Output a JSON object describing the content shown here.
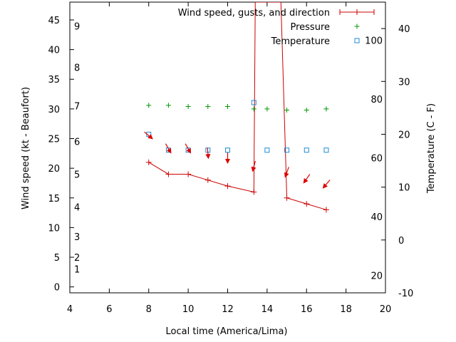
{
  "chart_data": {
    "type": "line",
    "xlabel": "Local time (America/Lima)",
    "ylabel": "Wind speed (kt - Beaufort)",
    "y2label": "Temperature (C - F)",
    "xlim": [
      4,
      20
    ],
    "ylim": [
      -1,
      48
    ],
    "y2lim": [
      -10,
      45
    ],
    "grid": false,
    "legend_position": "top-right",
    "x_ticks": [
      "4",
      "6",
      "8",
      "10",
      "12",
      "14",
      "16",
      "18",
      "20"
    ],
    "y_ticks": [
      "0",
      "5",
      "10",
      "15",
      "20",
      "25",
      "30",
      "35",
      "40",
      "45"
    ],
    "y2_ticks_celsius": [
      "-10",
      "0",
      "10",
      "20",
      "30",
      "40"
    ],
    "fahrenheit_labels": [
      "20",
      "40",
      "60",
      "80",
      "100"
    ],
    "beaufort_labels": [
      "1",
      "2",
      "3",
      "4",
      "5",
      "6",
      "7",
      "8",
      "9"
    ],
    "colors": {
      "wind": "#cc0000",
      "pressure": "#009900",
      "temperature": "#1e8bd6",
      "direction_arrow": "#dd0000"
    },
    "series": [
      {
        "name": "Wind speed, gusts, and direction",
        "marker": "plus-line",
        "x": [
          8,
          9,
          10,
          11,
          12,
          13.33,
          13.4,
          14.7,
          15,
          16,
          17
        ],
        "y": [
          21,
          19,
          19,
          18,
          17,
          16,
          48,
          48,
          15,
          14,
          13
        ]
      },
      {
        "name": "Pressure",
        "marker": "plus",
        "x": [
          8,
          9,
          10,
          11,
          12,
          13.33,
          14,
          15,
          16,
          17
        ],
        "y": [
          30.6,
          30.6,
          30.4,
          30.4,
          30.4,
          30.0,
          30.0,
          29.8,
          29.8,
          30.0
        ]
      },
      {
        "name": "Temperature",
        "marker": "square",
        "x": [
          8,
          9,
          10,
          11,
          12,
          13.33,
          14,
          15,
          16,
          17
        ],
        "y2": [
          20,
          17,
          17,
          17,
          17,
          26,
          17,
          17,
          17,
          17
        ]
      }
    ],
    "direction_arrows": [
      {
        "x": 8,
        "y": 25.5,
        "angle": 130
      },
      {
        "x": 9,
        "y": 23.3,
        "angle": 150
      },
      {
        "x": 10,
        "y": 23.3,
        "angle": 150
      },
      {
        "x": 11,
        "y": 22.5,
        "angle": 175
      },
      {
        "x": 12,
        "y": 21.7,
        "angle": 180
      },
      {
        "x": 13.33,
        "y": 20.3,
        "angle": 195
      },
      {
        "x": 15,
        "y": 19.3,
        "angle": 200
      },
      {
        "x": 16,
        "y": 18.2,
        "angle": 215
      },
      {
        "x": 17,
        "y": 17.3,
        "angle": 220
      }
    ]
  }
}
